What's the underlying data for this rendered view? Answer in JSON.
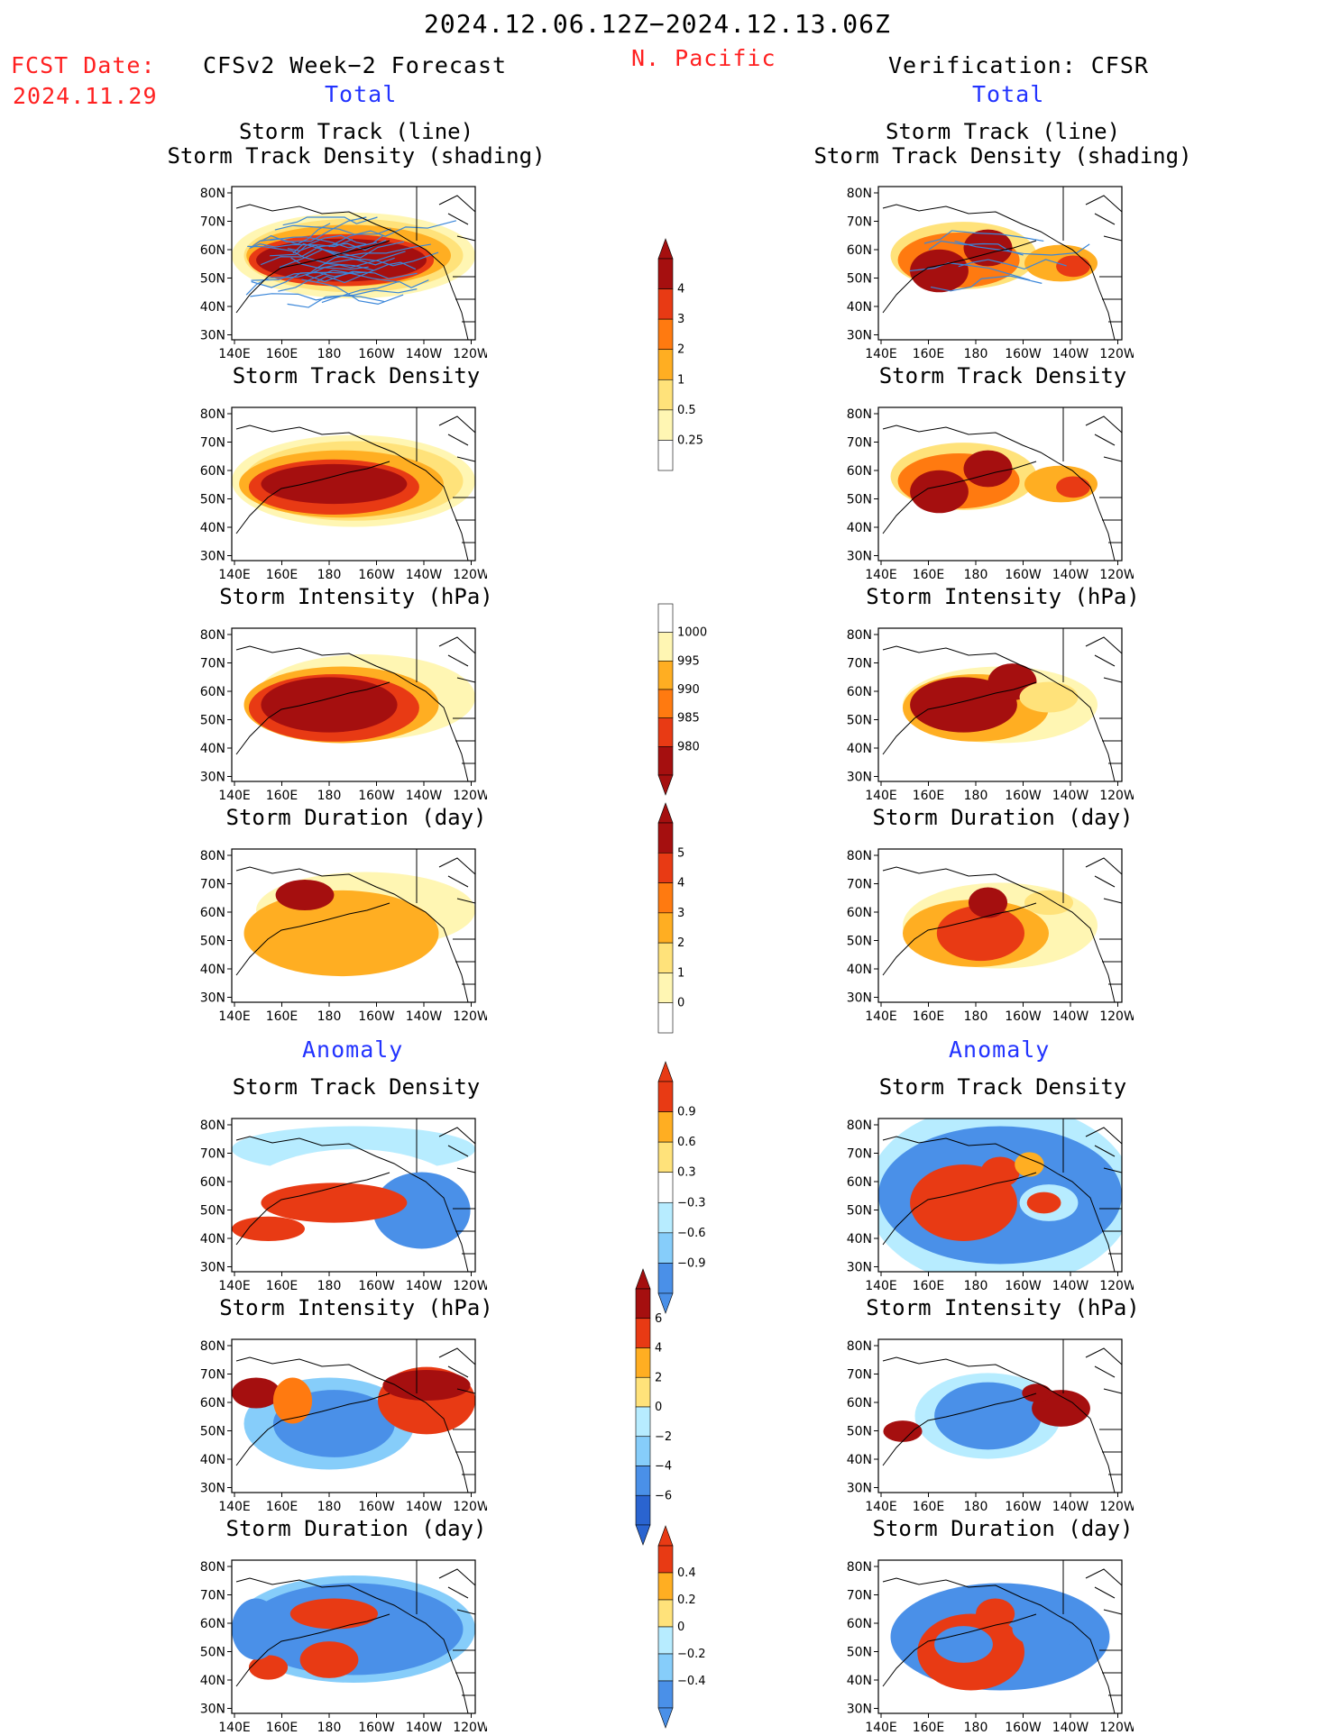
{
  "header": {
    "date_range": "2024.12.06.12Z−2024.12.13.06Z",
    "fcst_label": "FCST Date:",
    "fcst_date": "2024.11.29",
    "left_title": "CFSv2 Week−2 Forecast",
    "region": "N. Pacific",
    "right_title": "Verification: CFSR",
    "total_left": "Total",
    "total_right": "Total",
    "anomaly_left": "Anomaly",
    "anomaly_right": "Anomaly"
  },
  "panel_titles": {
    "track_line": "Storm Track (line)",
    "track_shading": "Storm Track Density (shading)",
    "density": "Storm Track Density",
    "intensity": "Storm Intensity (hPa)",
    "duration": "Storm Duration (day)"
  },
  "axes": {
    "lat_labels": [
      "80N",
      "70N",
      "60N",
      "50N",
      "40N",
      "30N"
    ],
    "lon_labels": [
      "140E",
      "160E",
      "180",
      "160W",
      "140W",
      "120W"
    ]
  },
  "colorbars": {
    "density_total": [
      "4",
      "3",
      "2",
      "1",
      "0.5",
      "0.25"
    ],
    "intensity_total": [
      "1000",
      "995",
      "990",
      "985",
      "980"
    ],
    "duration_total": [
      "5",
      "4",
      "3",
      "2",
      "1",
      "0"
    ],
    "density_anom": [
      "0.9",
      "0.6",
      "0.3",
      "−0.3",
      "−0.6",
      "−0.9"
    ],
    "intensity_anom": [
      "6",
      "4",
      "2",
      "0",
      "−2",
      "−4",
      "−6"
    ],
    "duration_anom": [
      "0.4",
      "0.2",
      "0",
      "−0.2",
      "−0.4"
    ]
  },
  "colors": {
    "c0": "#fff6b3",
    "c1": "#ffe27a",
    "c2": "#ffae22",
    "c3": "#ff7a10",
    "c4": "#e83a14",
    "c5": "#a50f0f",
    "b1": "#b7ecff",
    "b2": "#86cdfa",
    "b3": "#4a90e8",
    "b4": "#2a64d0",
    "track": "#3a86d9"
  }
}
